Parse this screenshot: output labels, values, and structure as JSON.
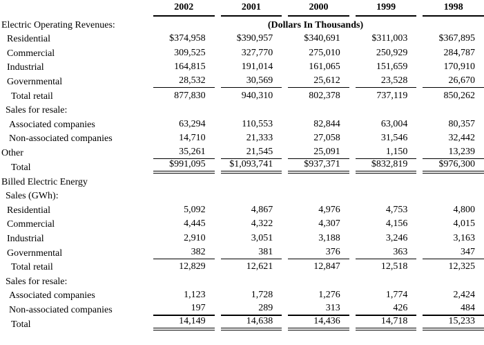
{
  "table": {
    "columns": [
      "2002",
      "2001",
      "2000",
      "1999",
      "1998"
    ],
    "units_note": "(Dollars In Thousands)",
    "rows": [
      {
        "label": "Electric Operating Revenues:",
        "indent": 0,
        "note_row": true,
        "values": null,
        "rule": null
      },
      {
        "label": "Residential",
        "indent": 2,
        "values": [
          "$374,958",
          "$390,957",
          "$340,691",
          "$311,003",
          "$367,895"
        ],
        "rule": null
      },
      {
        "label": "Commercial",
        "indent": 2,
        "values": [
          "309,525",
          "327,770",
          "275,010",
          "250,929",
          "284,787"
        ],
        "rule": null
      },
      {
        "label": "Industrial",
        "indent": 2,
        "values": [
          "164,815",
          "191,014",
          "161,065",
          "151,659",
          "170,910"
        ],
        "rule": null
      },
      {
        "label": "Governmental",
        "indent": 2,
        "values": [
          "28,532",
          "30,569",
          "25,612",
          "23,528",
          "26,670"
        ],
        "rule": "single"
      },
      {
        "label": "Total retail",
        "indent": 4,
        "values": [
          "877,830",
          "940,310",
          "802,378",
          "737,119",
          "850,262"
        ],
        "rule": null
      },
      {
        "label": "Sales for resale:",
        "indent": 1,
        "values": null,
        "rule": null
      },
      {
        "label": "Associated companies",
        "indent": 3,
        "values": [
          "63,294",
          "110,553",
          "82,844",
          "63,004",
          "80,357"
        ],
        "rule": null
      },
      {
        "label": "Non-associated companies",
        "indent": 3,
        "values": [
          "14,710",
          "21,333",
          "27,058",
          "31,546",
          "32,442"
        ],
        "rule": null
      },
      {
        "label": "Other",
        "indent": 0,
        "values": [
          "35,261",
          "21,545",
          "25,091",
          "1,150",
          "13,239"
        ],
        "rule": "single"
      },
      {
        "label": "Total",
        "indent": 4,
        "values": [
          "$991,095",
          "$1,093,741",
          "$937,371",
          "$832,819",
          "$976,300"
        ],
        "rule": "double"
      },
      {
        "label": "Billed Electric Energy",
        "indent": 0,
        "values": null,
        "rule": null
      },
      {
        "label": "Sales (GWh):",
        "indent": 1,
        "values": null,
        "rule": null
      },
      {
        "label": "Residential",
        "indent": 2,
        "values": [
          "5,092",
          "4,867",
          "4,976",
          "4,753",
          "4,800"
        ],
        "rule": null
      },
      {
        "label": "Commercial",
        "indent": 2,
        "values": [
          "4,445",
          "4,322",
          "4,307",
          "4,156",
          "4,015"
        ],
        "rule": null
      },
      {
        "label": "Industrial",
        "indent": 2,
        "values": [
          "2,910",
          "3,051",
          "3,188",
          "3,246",
          "3,163"
        ],
        "rule": null
      },
      {
        "label": "Governmental",
        "indent": 2,
        "values": [
          "382",
          "381",
          "376",
          "363",
          "347"
        ],
        "rule": "single"
      },
      {
        "label": "Total retail",
        "indent": 4,
        "values": [
          "12,829",
          "12,621",
          "12,847",
          "12,518",
          "12,325"
        ],
        "rule": null
      },
      {
        "label": "Sales for resale:",
        "indent": 1,
        "values": null,
        "rule": null
      },
      {
        "label": "Associated companies",
        "indent": 3,
        "values": [
          "1,123",
          "1,728",
          "1,276",
          "1,774",
          "2,424"
        ],
        "rule": null
      },
      {
        "label": "Non-associated companies",
        "indent": 3,
        "values": [
          "197",
          "289",
          "313",
          "426",
          "484"
        ],
        "rule": "thick"
      },
      {
        "label": "Total",
        "indent": 4,
        "values": [
          "14,149",
          "14,638",
          "14,436",
          "14,718",
          "15,233"
        ],
        "rule": "double"
      }
    ]
  }
}
